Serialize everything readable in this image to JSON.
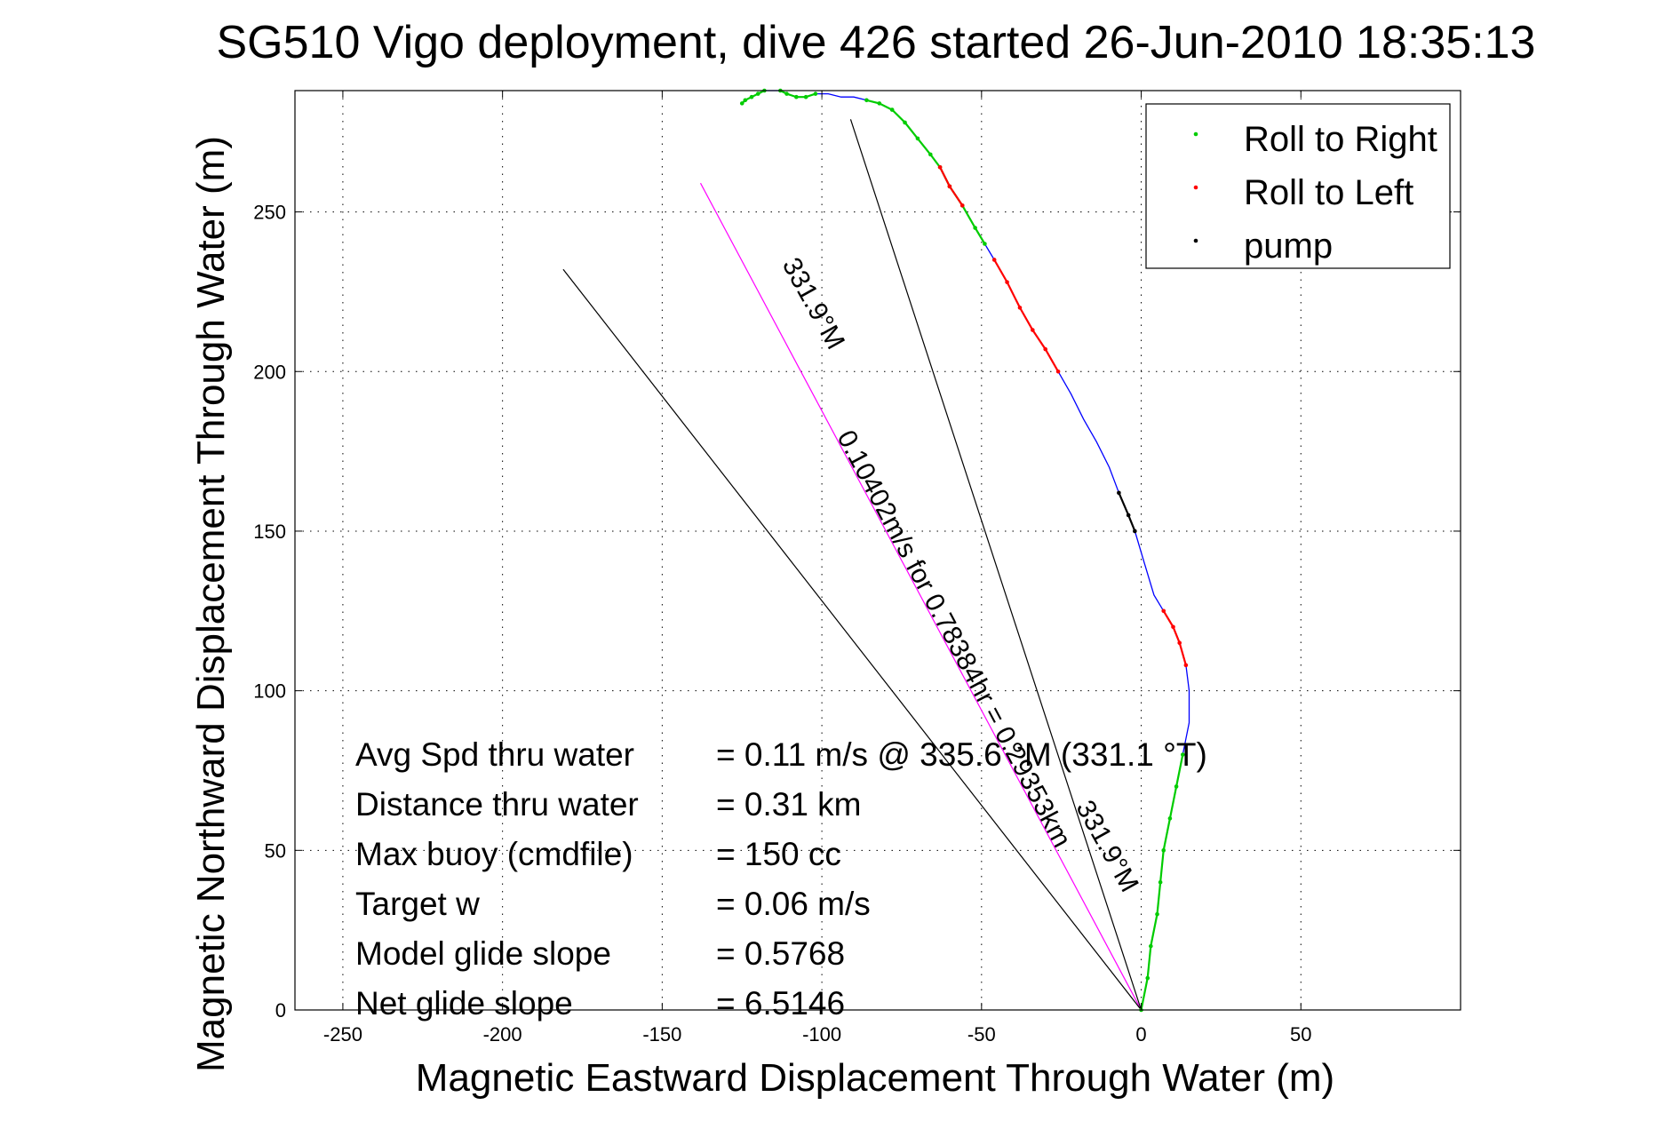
{
  "chart_data": {
    "type": "line",
    "title": "SG510 Vigo deployment, dive 426 started 26-Jun-2010 18:35:13",
    "xlabel": "Magnetic Eastward Displacement Through Water (m)",
    "ylabel": "Magnetic Northward Displacement Through Water (m)",
    "xlim": [
      -265,
      100
    ],
    "ylim": [
      0,
      288
    ],
    "xticks": [
      -250,
      -200,
      -150,
      -100,
      -50,
      0,
      50
    ],
    "yticks": [
      0,
      50,
      100,
      150,
      200,
      250
    ],
    "grid": true,
    "legend_position": "top-right",
    "legend": [
      {
        "label": "Roll to Right",
        "color": "#00cc00"
      },
      {
        "label": "Roll to Left",
        "color": "#ff0000"
      },
      {
        "label": "pump",
        "color": "#000000"
      }
    ],
    "track": {
      "color": "#0000ff",
      "x": [
        0,
        2,
        3,
        5,
        6,
        7,
        9,
        11,
        13,
        15,
        15,
        14,
        12,
        10,
        7,
        4,
        1,
        -2,
        -4,
        -7,
        -10,
        -14,
        -18,
        -22,
        -26,
        -30,
        -34,
        -38,
        -42,
        -46,
        -49,
        -52,
        -56,
        -60,
        -63,
        -66,
        -70,
        -74,
        -78,
        -82,
        -86,
        -90,
        -94,
        -98,
        -102,
        -105,
        -108,
        -111,
        -113,
        -116,
        -118,
        -120,
        -122,
        -124,
        -125
      ],
      "y": [
        0,
        10,
        20,
        30,
        40,
        50,
        60,
        70,
        80,
        90,
        100,
        108,
        115,
        120,
        125,
        130,
        140,
        150,
        155,
        162,
        170,
        178,
        185,
        193,
        200,
        207,
        213,
        220,
        228,
        235,
        240,
        245,
        252,
        258,
        264,
        268,
        273,
        278,
        282,
        284,
        285,
        286,
        286,
        287,
        287,
        286,
        286,
        287,
        288,
        288,
        288,
        287,
        286,
        285,
        284
      ]
    },
    "roll_right_segments": [
      [
        0,
        8
      ],
      [
        30,
        40
      ],
      [
        44,
        48
      ],
      [
        50,
        54
      ]
    ],
    "roll_left_segments": [
      [
        11,
        14
      ],
      [
        24,
        29
      ],
      [
        32,
        34
      ]
    ],
    "pump_segments": [
      [
        17,
        19
      ]
    ],
    "heading_lines": [
      {
        "label": "331.9°M",
        "color": "#ff00ff",
        "x": [
          0,
          -138
        ],
        "y": [
          0,
          259
        ]
      },
      {
        "label": "",
        "color": "#000000",
        "x": [
          0,
          -91
        ],
        "y": [
          0,
          279
        ]
      },
      {
        "label": "",
        "color": "#000000",
        "x": [
          0,
          -181
        ],
        "y": [
          0,
          232
        ]
      }
    ],
    "annotations": [
      {
        "text": "331.9°M",
        "x": -105,
        "y": 220,
        "angle": 61
      },
      {
        "text": "0.10402m/s for 0.78384hr = 0.29353km",
        "x": -61,
        "y": 115,
        "angle": 62
      },
      {
        "text": "331.9°M",
        "x": -13,
        "y": 50,
        "angle": 61
      }
    ],
    "stats": [
      {
        "label": "Avg Spd thru water",
        "value": "=  0.11 m/s @ 335.6 °M (331.1 °T)"
      },
      {
        "label": "Distance thru water",
        "value": "=  0.31 km"
      },
      {
        "label": "Max buoy (cmdfile)",
        "value": "= 150 cc"
      },
      {
        "label": "Target w",
        "value": "= 0.06 m/s"
      },
      {
        "label": "Model glide slope",
        "value": "= 0.5768"
      },
      {
        "label": "Net glide slope",
        "value": "= 6.5146"
      }
    ]
  }
}
